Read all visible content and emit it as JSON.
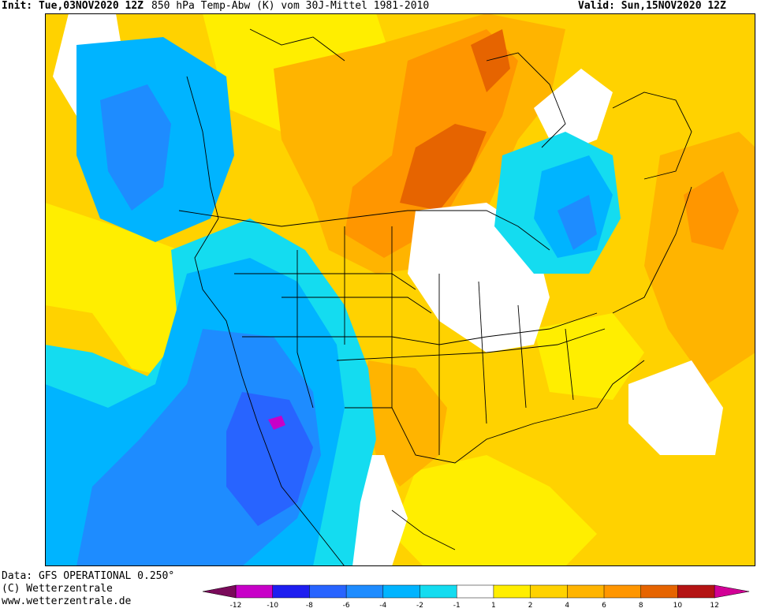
{
  "header": {
    "init": "Init: Tue,03NOV2020 12Z",
    "title": "850 hPa Temp-Abw (K) vom 30J-Mittel 1981-2010",
    "valid": "Valid: Sun,15NOV2020 12Z"
  },
  "footer": {
    "data_source": "Data: GFS OPERATIONAL 0.250°",
    "copyright": "(C) Wetterzentrale",
    "website": "www.wetterzentrale.de"
  },
  "colorbar": {
    "ticks": [
      "-12",
      "-10",
      "-8",
      "-6",
      "-4",
      "-2",
      "-1",
      "1",
      "2",
      "4",
      "6",
      "8",
      "10",
      "12"
    ],
    "colors": {
      "lt_m12": "#7a0a5a",
      "m12_m10": "#c800c8",
      "m10_m8": "#1e1ef0",
      "m8_m6": "#2864ff",
      "m6_m4": "#1e8cff",
      "m4_m2": "#00b4ff",
      "m2_m1": "#14dcf0",
      "m1_1": "#ffffff",
      "p1_2": "#ffee00",
      "p2_4": "#ffd200",
      "p4_6": "#ffb400",
      "p6_8": "#ff9600",
      "p8_10": "#e66400",
      "p10_12": "#b41414",
      "gt_12": "#d20096"
    }
  }
}
